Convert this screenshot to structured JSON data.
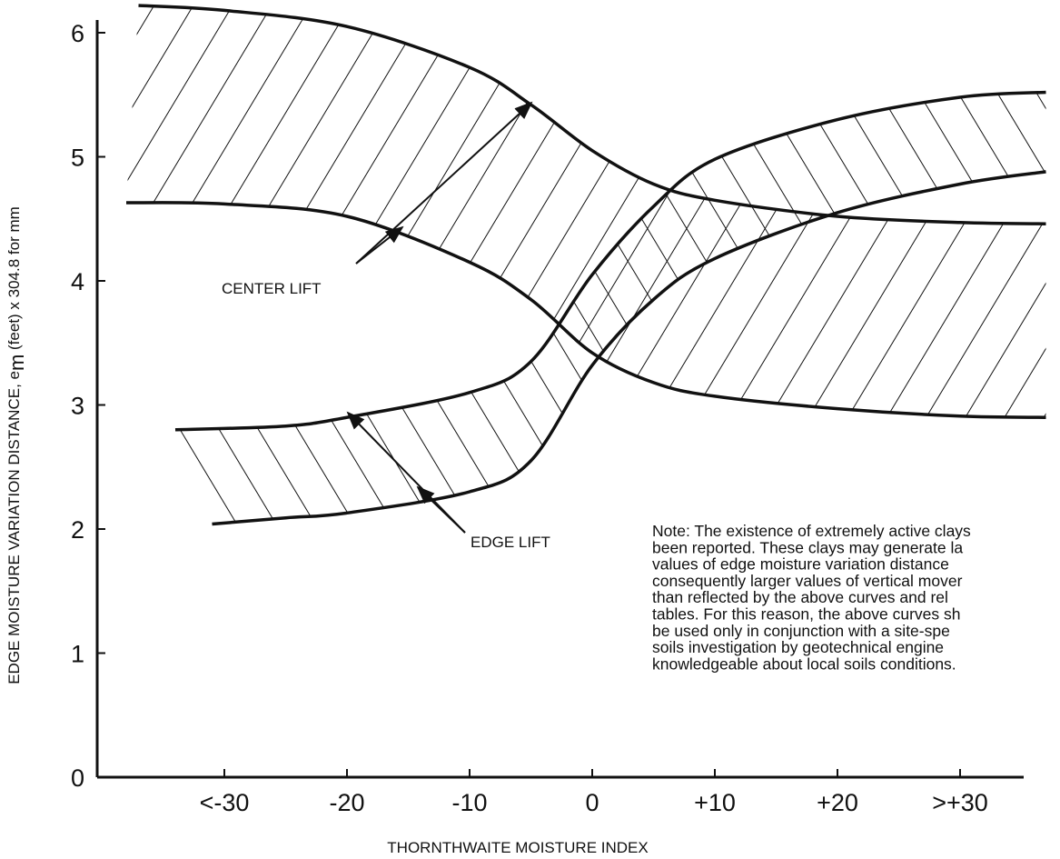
{
  "chart_data": {
    "type": "area",
    "title": "",
    "xlabel": "THORNTHWAITE MOISTURE INDEX",
    "ylabel": "EDGE MOISTURE VARIATION DISTANCE, e",
    "ylabel_sub": "m",
    "ylabel_suffix": " (feet) x 304.8 for mm",
    "xlim": [
      -40,
      35
    ],
    "ylim": [
      0,
      6.2
    ],
    "x_ticks": [
      -30,
      -20,
      -10,
      0,
      10,
      20,
      30
    ],
    "x_tick_labels": [
      "<-30",
      "-20",
      "-10",
      "0",
      "+10",
      "+20",
      ">+30"
    ],
    "y_ticks": [
      0,
      1,
      2,
      3,
      4,
      5,
      6
    ],
    "y_tick_labels": [
      "0",
      "1",
      "2",
      "3",
      "4",
      "5",
      "6"
    ],
    "grid": false,
    "series": [
      {
        "name": "CENTER LIFT",
        "upper": {
          "x": [
            -37,
            -30,
            -20,
            -10,
            -5,
            0,
            5,
            10,
            20,
            30,
            37
          ],
          "y": [
            6.22,
            6.18,
            6.05,
            5.72,
            5.42,
            5.05,
            4.78,
            4.65,
            4.52,
            4.47,
            4.46
          ]
        },
        "lower": {
          "x": [
            -38,
            -30,
            -20,
            -10,
            -5,
            0,
            5,
            10,
            20,
            30,
            37
          ],
          "y": [
            4.63,
            4.62,
            4.52,
            4.15,
            3.85,
            3.42,
            3.18,
            3.07,
            2.97,
            2.91,
            2.9
          ]
        }
      },
      {
        "name": "EDGE LIFT",
        "upper": {
          "x": [
            -34,
            -25,
            -20,
            -10,
            -5,
            0,
            5,
            10,
            20,
            30,
            37
          ],
          "y": [
            2.8,
            2.83,
            2.9,
            3.1,
            3.35,
            4.05,
            4.6,
            4.98,
            5.3,
            5.48,
            5.52
          ]
        },
        "lower": {
          "x": [
            -31,
            -25,
            -20,
            -10,
            -5,
            0,
            5,
            10,
            20,
            30,
            37
          ],
          "y": [
            2.04,
            2.09,
            2.13,
            2.3,
            2.55,
            3.32,
            3.85,
            4.18,
            4.55,
            4.78,
            4.88
          ]
        }
      }
    ],
    "annotations": [
      {
        "text": "CENTER LIFT",
        "label_x": -16,
        "label_y": 3.95
      },
      {
        "text": "EDGE LIFT",
        "label_x": -3,
        "label_y": 1.95
      }
    ]
  },
  "note": {
    "lines": [
      "Note: The existence of extremely active clays",
      "been reported. These clays may generate la",
      "values of edge moisture variation distance",
      "consequently larger values of vertical mover",
      "than reflected by the above curves and rel",
      "tables. For this reason, the above curves sh",
      "be used only in conjunction with a site-spe",
      "soils investigation by geotechnical engine",
      "knowledgeable about local soils conditions."
    ]
  },
  "colors": {
    "ink": "#111111",
    "background": "#ffffff"
  }
}
